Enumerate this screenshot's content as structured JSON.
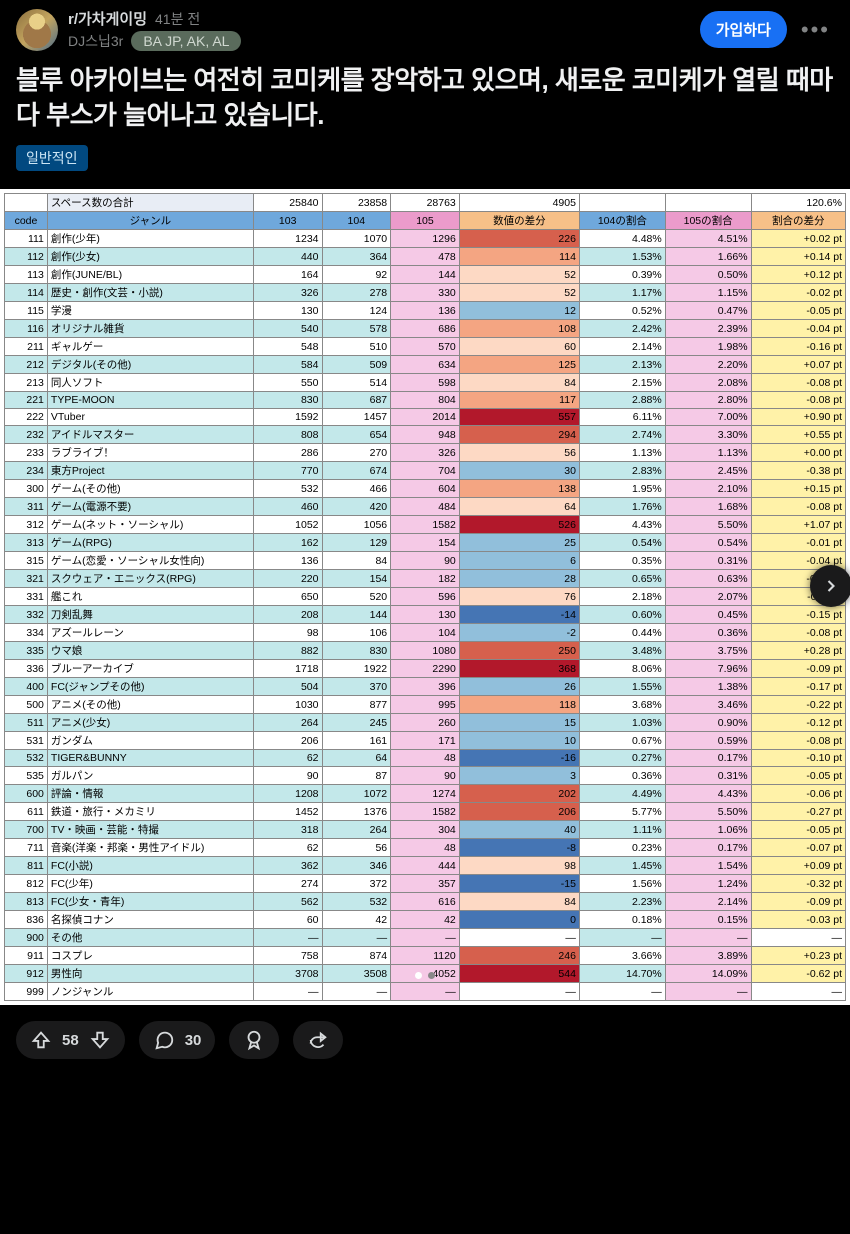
{
  "header": {
    "subreddit": "r/가차게이밍",
    "time": "41분 전",
    "author": "DJ스닙3r",
    "flair": "BA JP, AK, AL",
    "join": "가입하다"
  },
  "title": "블루 아카이브는 여전히 코미케를 장악하고 있으며, 새로운 코미케가 열릴 때마다 부스가 늘어나고 있습니다.",
  "tag": "일반적인",
  "table": {
    "total_label": "スペース数の合計",
    "totals": {
      "c103": "25840",
      "c104": "23858",
      "c105": "28763",
      "diff": "4905",
      "pct105": "120.6%"
    },
    "headers": {
      "code": "code",
      "genre": "ジャンル",
      "c103": "103",
      "c104": "104",
      "c105": "105",
      "diff": "数値の差分",
      "pct104": "104の割合",
      "pct105": "105の割合",
      "ptdiff": "割合の差分"
    },
    "rows": [
      {
        "code": "111",
        "genre": "創作(少年)",
        "c103": "1234",
        "c104": "1070",
        "c105": "1296",
        "diff": "226",
        "pct104": "4.48%",
        "pct105": "4.51%",
        "ptdiff": "+0.02 pt",
        "d": 3,
        "pd": 0
      },
      {
        "code": "112",
        "genre": "創作(少女)",
        "c103": "440",
        "c104": "364",
        "c105": "478",
        "diff": "114",
        "pct104": "1.53%",
        "pct105": "1.66%",
        "ptdiff": "+0.14 pt",
        "d": 2,
        "pd": 1
      },
      {
        "code": "113",
        "genre": "創作(JUNE/BL)",
        "c103": "164",
        "c104": "92",
        "c105": "144",
        "diff": "52",
        "pct104": "0.39%",
        "pct105": "0.50%",
        "ptdiff": "+0.12 pt",
        "d": 1,
        "pd": 1
      },
      {
        "code": "114",
        "genre": "歴史・創作(文芸・小説)",
        "c103": "326",
        "c104": "278",
        "c105": "330",
        "diff": "52",
        "pct104": "1.17%",
        "pct105": "1.15%",
        "ptdiff": "-0.02 pt",
        "d": 1,
        "pd": -1
      },
      {
        "code": "115",
        "genre": "学漫",
        "c103": "130",
        "c104": "124",
        "c105": "136",
        "diff": "12",
        "pct104": "0.52%",
        "pct105": "0.47%",
        "ptdiff": "-0.05 pt",
        "d": -1,
        "pd": -1
      },
      {
        "code": "116",
        "genre": "オリジナル雑貨",
        "c103": "540",
        "c104": "578",
        "c105": "686",
        "diff": "108",
        "pct104": "2.42%",
        "pct105": "2.39%",
        "ptdiff": "-0.04 pt",
        "d": 2,
        "pd": -1
      },
      {
        "code": "211",
        "genre": "ギャルゲー",
        "c103": "548",
        "c104": "510",
        "c105": "570",
        "diff": "60",
        "pct104": "2.14%",
        "pct105": "1.98%",
        "ptdiff": "-0.16 pt",
        "d": 1,
        "pd": -1
      },
      {
        "code": "212",
        "genre": "デジタル(その他)",
        "c103": "584",
        "c104": "509",
        "c105": "634",
        "diff": "125",
        "pct104": "2.13%",
        "pct105": "2.20%",
        "ptdiff": "+0.07 pt",
        "d": 2,
        "pd": 1
      },
      {
        "code": "213",
        "genre": "同人ソフト",
        "c103": "550",
        "c104": "514",
        "c105": "598",
        "diff": "84",
        "pct104": "2.15%",
        "pct105": "2.08%",
        "ptdiff": "-0.08 pt",
        "d": 1,
        "pd": -1
      },
      {
        "code": "221",
        "genre": "TYPE-MOON",
        "c103": "830",
        "c104": "687",
        "c105": "804",
        "diff": "117",
        "pct104": "2.88%",
        "pct105": "2.80%",
        "ptdiff": "-0.08 pt",
        "d": 2,
        "pd": -1
      },
      {
        "code": "222",
        "genre": "VTuber",
        "c103": "1592",
        "c104": "1457",
        "c105": "2014",
        "diff": "557",
        "pct104": "6.11%",
        "pct105": "7.00%",
        "ptdiff": "+0.90 pt",
        "d": 4,
        "pd": 1
      },
      {
        "code": "232",
        "genre": "アイドルマスター",
        "c103": "808",
        "c104": "654",
        "c105": "948",
        "diff": "294",
        "pct104": "2.74%",
        "pct105": "3.30%",
        "ptdiff": "+0.55 pt",
        "d": 3,
        "pd": 1
      },
      {
        "code": "233",
        "genre": "ラブライブ！",
        "c103": "286",
        "c104": "270",
        "c105": "326",
        "diff": "56",
        "pct104": "1.13%",
        "pct105": "1.13%",
        "ptdiff": "+0.00 pt",
        "d": 1,
        "pd": 0
      },
      {
        "code": "234",
        "genre": "東方Project",
        "c103": "770",
        "c104": "674",
        "c105": "704",
        "diff": "30",
        "pct104": "2.83%",
        "pct105": "2.45%",
        "ptdiff": "-0.38 pt",
        "d": -1,
        "pd": -1
      },
      {
        "code": "300",
        "genre": "ゲーム(その他)",
        "c103": "532",
        "c104": "466",
        "c105": "604",
        "diff": "138",
        "pct104": "1.95%",
        "pct105": "2.10%",
        "ptdiff": "+0.15 pt",
        "d": 2,
        "pd": 1
      },
      {
        "code": "311",
        "genre": "ゲーム(電源不要)",
        "c103": "460",
        "c104": "420",
        "c105": "484",
        "diff": "64",
        "pct104": "1.76%",
        "pct105": "1.68%",
        "ptdiff": "-0.08 pt",
        "d": 1,
        "pd": -1
      },
      {
        "code": "312",
        "genre": "ゲーム(ネット・ソーシャル)",
        "c103": "1052",
        "c104": "1056",
        "c105": "1582",
        "diff": "526",
        "pct104": "4.43%",
        "pct105": "5.50%",
        "ptdiff": "+1.07 pt",
        "d": 4,
        "pd": 1
      },
      {
        "code": "313",
        "genre": "ゲーム(RPG)",
        "c103": "162",
        "c104": "129",
        "c105": "154",
        "diff": "25",
        "pct104": "0.54%",
        "pct105": "0.54%",
        "ptdiff": "-0.01 pt",
        "d": -1,
        "pd": -1
      },
      {
        "code": "315",
        "genre": "ゲーム(恋愛・ソーシャル女性向)",
        "c103": "136",
        "c104": "84",
        "c105": "90",
        "diff": "6",
        "pct104": "0.35%",
        "pct105": "0.31%",
        "ptdiff": "-0.04 pt",
        "d": -1,
        "pd": -1
      },
      {
        "code": "321",
        "genre": "スクウェア・エニックス(RPG)",
        "c103": "220",
        "c104": "154",
        "c105": "182",
        "diff": "28",
        "pct104": "0.65%",
        "pct105": "0.63%",
        "ptdiff": "-0.01 pt",
        "d": -1,
        "pd": -1
      },
      {
        "code": "331",
        "genre": "艦これ",
        "c103": "650",
        "c104": "520",
        "c105": "596",
        "diff": "76",
        "pct104": "2.18%",
        "pct105": "2.07%",
        "ptdiff": "-0.11 pt",
        "d": 1,
        "pd": -1
      },
      {
        "code": "332",
        "genre": "刀剣乱舞",
        "c103": "208",
        "c104": "144",
        "c105": "130",
        "diff": "-14",
        "pct104": "0.60%",
        "pct105": "0.45%",
        "ptdiff": "-0.15 pt",
        "d": -2,
        "pd": -1
      },
      {
        "code": "334",
        "genre": "アズールレーン",
        "c103": "98",
        "c104": "106",
        "c105": "104",
        "diff": "-2",
        "pct104": "0.44%",
        "pct105": "0.36%",
        "ptdiff": "-0.08 pt",
        "d": -1,
        "pd": -1
      },
      {
        "code": "335",
        "genre": "ウマ娘",
        "c103": "882",
        "c104": "830",
        "c105": "1080",
        "diff": "250",
        "pct104": "3.48%",
        "pct105": "3.75%",
        "ptdiff": "+0.28 pt",
        "d": 3,
        "pd": 1
      },
      {
        "code": "336",
        "genre": "ブルーアーカイブ",
        "c103": "1718",
        "c104": "1922",
        "c105": "2290",
        "diff": "368",
        "pct104": "8.06%",
        "pct105": "7.96%",
        "ptdiff": "-0.09 pt",
        "d": 4,
        "pd": -1
      },
      {
        "code": "400",
        "genre": "FC(ジャンプその他)",
        "c103": "504",
        "c104": "370",
        "c105": "396",
        "diff": "26",
        "pct104": "1.55%",
        "pct105": "1.38%",
        "ptdiff": "-0.17 pt",
        "d": -1,
        "pd": -1
      },
      {
        "code": "500",
        "genre": "アニメ(その他)",
        "c103": "1030",
        "c104": "877",
        "c105": "995",
        "diff": "118",
        "pct104": "3.68%",
        "pct105": "3.46%",
        "ptdiff": "-0.22 pt",
        "d": 2,
        "pd": -1
      },
      {
        "code": "511",
        "genre": "アニメ(少女)",
        "c103": "264",
        "c104": "245",
        "c105": "260",
        "diff": "15",
        "pct104": "1.03%",
        "pct105": "0.90%",
        "ptdiff": "-0.12 pt",
        "d": -1,
        "pd": -1
      },
      {
        "code": "531",
        "genre": "ガンダム",
        "c103": "206",
        "c104": "161",
        "c105": "171",
        "diff": "10",
        "pct104": "0.67%",
        "pct105": "0.59%",
        "ptdiff": "-0.08 pt",
        "d": -1,
        "pd": -1
      },
      {
        "code": "532",
        "genre": "TIGER&BUNNY",
        "c103": "62",
        "c104": "64",
        "c105": "48",
        "diff": "-16",
        "pct104": "0.27%",
        "pct105": "0.17%",
        "ptdiff": "-0.10 pt",
        "d": -2,
        "pd": -1
      },
      {
        "code": "535",
        "genre": "ガルパン",
        "c103": "90",
        "c104": "87",
        "c105": "90",
        "diff": "3",
        "pct104": "0.36%",
        "pct105": "0.31%",
        "ptdiff": "-0.05 pt",
        "d": -1,
        "pd": -1
      },
      {
        "code": "600",
        "genre": "評論・情報",
        "c103": "1208",
        "c104": "1072",
        "c105": "1274",
        "diff": "202",
        "pct104": "4.49%",
        "pct105": "4.43%",
        "ptdiff": "-0.06 pt",
        "d": 3,
        "pd": -1
      },
      {
        "code": "611",
        "genre": "鉄道・旅行・メカミリ",
        "c103": "1452",
        "c104": "1376",
        "c105": "1582",
        "diff": "206",
        "pct104": "5.77%",
        "pct105": "5.50%",
        "ptdiff": "-0.27 pt",
        "d": 3,
        "pd": -1
      },
      {
        "code": "700",
        "genre": "TV・映画・芸能・特撮",
        "c103": "318",
        "c104": "264",
        "c105": "304",
        "diff": "40",
        "pct104": "1.11%",
        "pct105": "1.06%",
        "ptdiff": "-0.05 pt",
        "d": -1,
        "pd": -1
      },
      {
        "code": "711",
        "genre": "音楽(洋楽・邦楽・男性アイドル)",
        "c103": "62",
        "c104": "56",
        "c105": "48",
        "diff": "-8",
        "pct104": "0.23%",
        "pct105": "0.17%",
        "ptdiff": "-0.07 pt",
        "d": -2,
        "pd": -1
      },
      {
        "code": "811",
        "genre": "FC(小説)",
        "c103": "362",
        "c104": "346",
        "c105": "444",
        "diff": "98",
        "pct104": "1.45%",
        "pct105": "1.54%",
        "ptdiff": "+0.09 pt",
        "d": 1,
        "pd": 1
      },
      {
        "code": "812",
        "genre": "FC(少年)",
        "c103": "274",
        "c104": "372",
        "c105": "357",
        "diff": "-15",
        "pct104": "1.56%",
        "pct105": "1.24%",
        "ptdiff": "-0.32 pt",
        "d": -2,
        "pd": -1
      },
      {
        "code": "813",
        "genre": "FC(少女・青年)",
        "c103": "562",
        "c104": "532",
        "c105": "616",
        "diff": "84",
        "pct104": "2.23%",
        "pct105": "2.14%",
        "ptdiff": "-0.09 pt",
        "d": 1,
        "pd": -1
      },
      {
        "code": "836",
        "genre": "名探偵コナン",
        "c103": "60",
        "c104": "42",
        "c105": "42",
        "diff": "0",
        "pct104": "0.18%",
        "pct105": "0.15%",
        "ptdiff": "-0.03 pt",
        "d": -2,
        "pd": -1
      },
      {
        "code": "900",
        "genre": "その他",
        "c103": "—",
        "c104": "—",
        "c105": "—",
        "diff": "—",
        "pct104": "—",
        "pct105": "—",
        "ptdiff": "—",
        "d": null,
        "pd": null
      },
      {
        "code": "911",
        "genre": "コスプレ",
        "c103": "758",
        "c104": "874",
        "c105": "1120",
        "diff": "246",
        "pct104": "3.66%",
        "pct105": "3.89%",
        "ptdiff": "+0.23 pt",
        "d": 3,
        "pd": 1
      },
      {
        "code": "912",
        "genre": "男性向",
        "c103": "3708",
        "c104": "3508",
        "c105": "4052",
        "diff": "544",
        "pct104": "14.70%",
        "pct105": "14.09%",
        "ptdiff": "-0.62 pt",
        "d": 4,
        "pd": -1
      },
      {
        "code": "999",
        "genre": "ノンジャンル",
        "c103": "—",
        "c104": "—",
        "c105": "—",
        "diff": "—",
        "pct104": "—",
        "pct105": "—",
        "ptdiff": "—",
        "d": null,
        "pd": null
      }
    ]
  },
  "footer": {
    "score": "58",
    "comments": "30"
  }
}
